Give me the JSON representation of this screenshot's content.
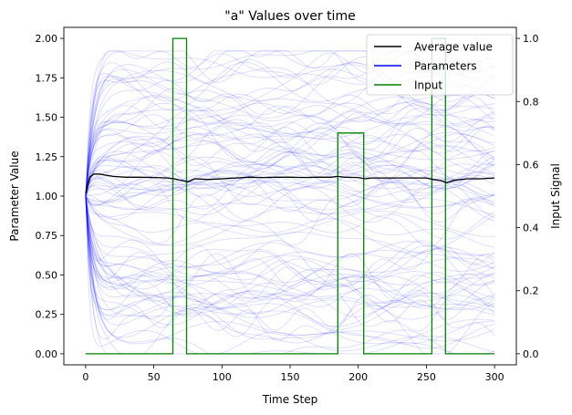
{
  "chart_data": {
    "type": "line",
    "title": "\"a\" Values over time",
    "xlabel": "Time Step",
    "ylabel": "Parameter Value",
    "y2label": "Input Signal",
    "xlim": [
      -16,
      316
    ],
    "ylim": [
      -0.07,
      2.07
    ],
    "y2lim": [
      -0.035,
      1.035
    ],
    "xticks": [
      0,
      50,
      100,
      150,
      200,
      250,
      300
    ],
    "yticks": [
      0.0,
      0.25,
      0.5,
      0.75,
      1.0,
      1.25,
      1.5,
      1.75,
      2.0
    ],
    "ytick_labels": [
      "0.00",
      "0.25",
      "0.50",
      "0.75",
      "1.00",
      "1.25",
      "1.50",
      "1.75",
      "2.00"
    ],
    "y2ticks": [
      0.0,
      0.2,
      0.4,
      0.6,
      0.8,
      1.0
    ],
    "y2tick_labels": [
      "0.0",
      "0.2",
      "0.4",
      "0.6",
      "0.8",
      "1.0"
    ],
    "legend_position": "top-right",
    "legend": [
      "Average value",
      "Parameters",
      "Input"
    ],
    "colors": {
      "average": "#000000",
      "parameters": "#0000ff",
      "input": "#008000"
    },
    "average_series": {
      "name": "Average value",
      "x": [
        0,
        3,
        6,
        10,
        20,
        30,
        40,
        50,
        60,
        65,
        70,
        75,
        80,
        90,
        100,
        110,
        120,
        130,
        140,
        150,
        160,
        170,
        180,
        185,
        190,
        200,
        205,
        210,
        220,
        230,
        240,
        250,
        255,
        260,
        265,
        270,
        280,
        290,
        300
      ],
      "y": [
        1.02,
        1.12,
        1.14,
        1.14,
        1.125,
        1.12,
        1.12,
        1.118,
        1.115,
        1.11,
        1.1,
        1.09,
        1.11,
        1.105,
        1.11,
        1.115,
        1.12,
        1.118,
        1.12,
        1.12,
        1.118,
        1.12,
        1.12,
        1.125,
        1.12,
        1.118,
        1.11,
        1.115,
        1.115,
        1.115,
        1.115,
        1.115,
        1.105,
        1.1,
        1.085,
        1.1,
        1.11,
        1.11,
        1.115
      ]
    },
    "input_series": {
      "name": "Input",
      "x": [
        0,
        64,
        64,
        74,
        74,
        185,
        185,
        204,
        204,
        254,
        254,
        264,
        264,
        300
      ],
      "y": [
        0,
        0,
        1,
        1,
        0,
        0,
        0.7,
        0.7,
        0,
        0,
        1,
        1,
        0,
        0
      ]
    },
    "parameters_series": {
      "name": "Parameters",
      "count": 100,
      "x_range": [
        0,
        300
      ],
      "start_value": 1.0,
      "value_range": [
        0.02,
        1.92
      ]
    }
  }
}
